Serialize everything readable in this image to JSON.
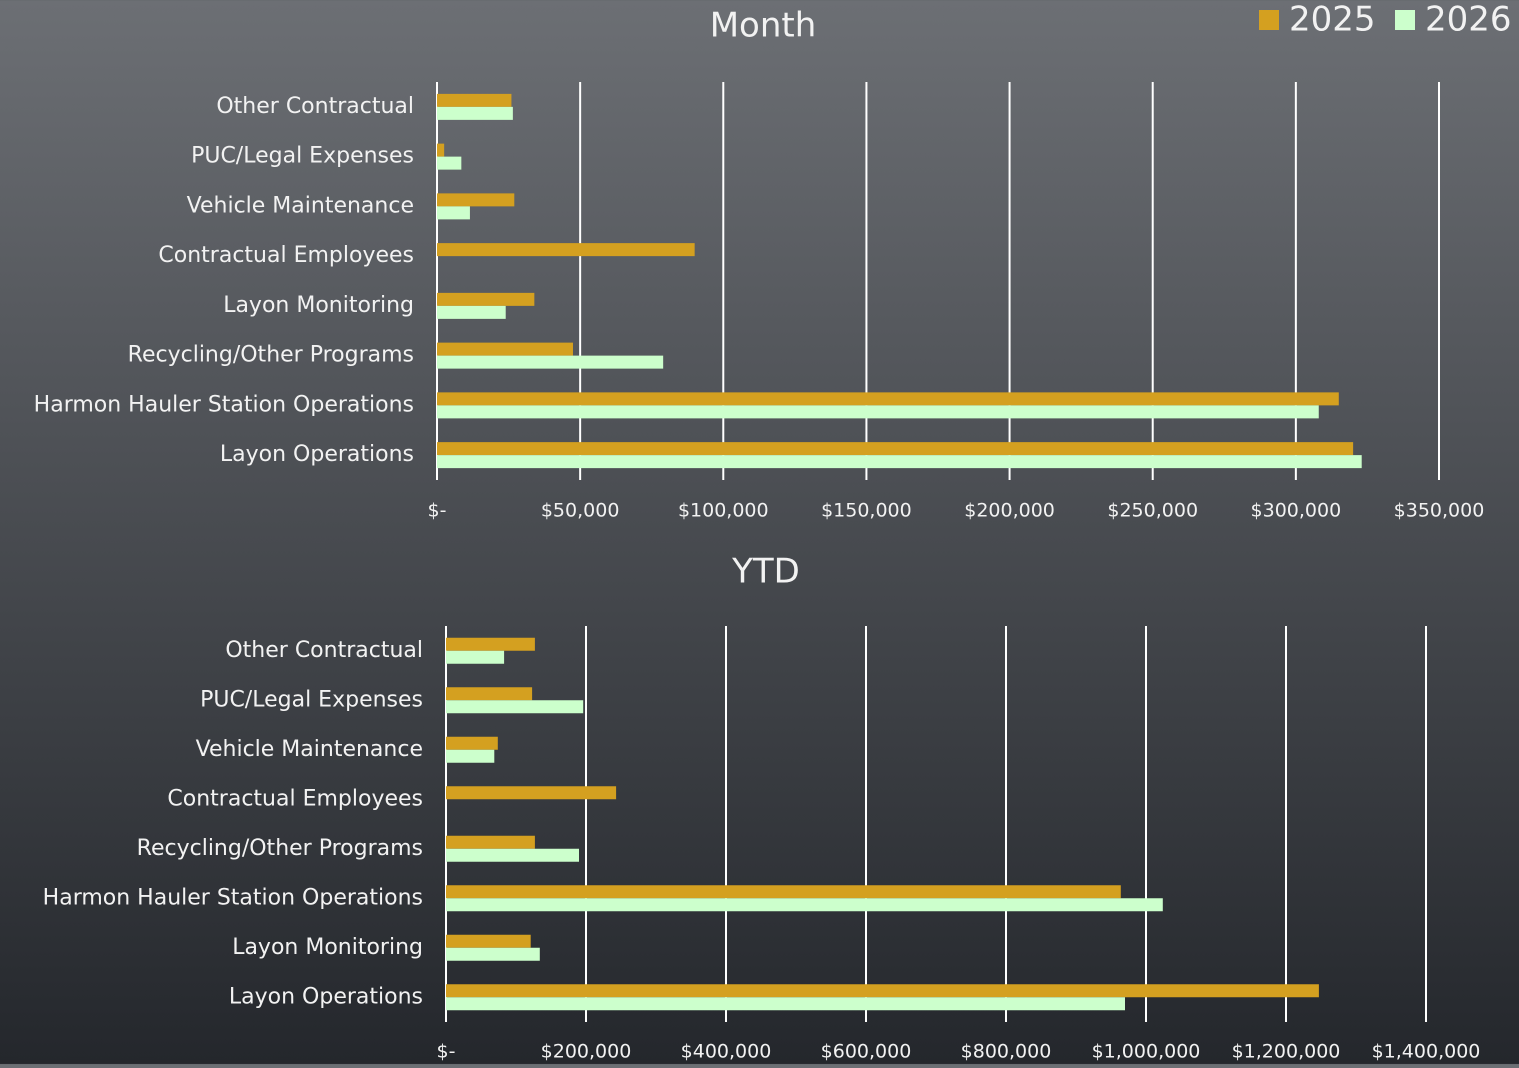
{
  "chart_data": [
    {
      "type": "bar",
      "orientation": "horizontal",
      "title": "Month",
      "categories": [
        "Other Contractual",
        "PUC/Legal Expenses",
        "Vehicle Maintenance",
        "Contractual Employees",
        "Layon Monitoring",
        "Recycling/Other Programs",
        "Harmon Hauler Station Operations",
        "Layon Operations"
      ],
      "series": [
        {
          "name": "2025",
          "color": "#d4a020",
          "values": [
            26000,
            2500,
            27000,
            90000,
            34000,
            47500,
            315000,
            320000
          ]
        },
        {
          "name": "2026",
          "color": "#ccffcc",
          "values": [
            26500,
            8500,
            11500,
            0,
            24000,
            79000,
            308000,
            323000
          ]
        }
      ],
      "xlim": [
        0,
        350000
      ],
      "xticks": [
        {
          "value": 0,
          "label": "$-"
        },
        {
          "value": 50000,
          "label": "$50,000"
        },
        {
          "value": 100000,
          "label": "$100,000"
        },
        {
          "value": 150000,
          "label": "$150,000"
        },
        {
          "value": 200000,
          "label": "$200,000"
        },
        {
          "value": 250000,
          "label": "$250,000"
        },
        {
          "value": 300000,
          "label": "$300,000"
        },
        {
          "value": 350000,
          "label": "$350,000"
        }
      ],
      "grid": true,
      "legend": "top-right"
    },
    {
      "type": "bar",
      "orientation": "horizontal",
      "title": "YTD",
      "categories": [
        "Other Contractual",
        "PUC/Legal Expenses",
        "Vehicle Maintenance",
        "Contractual Employees",
        "Recycling/Other Programs",
        "Harmon Hauler Station Operations",
        "Layon Monitoring",
        "Layon Operations"
      ],
      "series": [
        {
          "name": "2025",
          "color": "#d4a020",
          "values": [
            127000,
            123000,
            74000,
            243000,
            127000,
            964000,
            121000,
            1247000
          ]
        },
        {
          "name": "2026",
          "color": "#ccffcc",
          "values": [
            83000,
            196000,
            69000,
            0,
            190000,
            1024000,
            134000,
            970000
          ]
        }
      ],
      "xlim": [
        0,
        1400000
      ],
      "xticks": [
        {
          "value": 0,
          "label": "$-"
        },
        {
          "value": 200000,
          "label": "$200,000"
        },
        {
          "value": 400000,
          "label": "$400,000"
        },
        {
          "value": 600000,
          "label": "$600,000"
        },
        {
          "value": 800000,
          "label": "$800,000"
        },
        {
          "value": 1000000,
          "label": "$1,000,000"
        },
        {
          "value": 1200000,
          "label": "$1,200,000"
        },
        {
          "value": 1400000,
          "label": "$1,400,000"
        }
      ],
      "grid": true
    }
  ]
}
